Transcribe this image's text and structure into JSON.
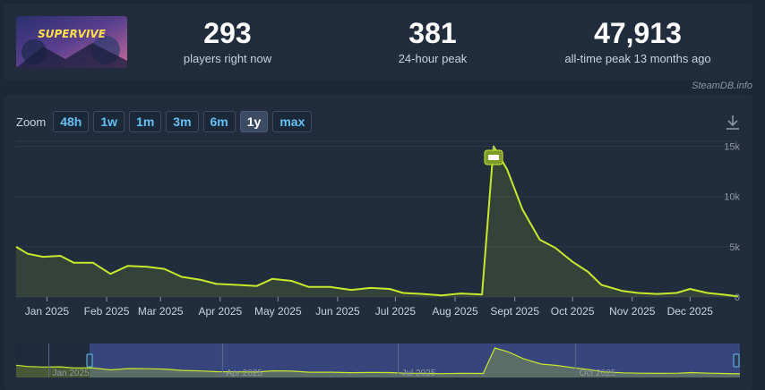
{
  "header": {
    "game_logo_text": "SUPERVIVE",
    "stats": [
      {
        "value": "293",
        "label": "players right now"
      },
      {
        "value": "381",
        "label": "24-hour peak"
      },
      {
        "value": "47,913",
        "label": "all-time peak 13 months ago"
      }
    ],
    "credit": "SteamDB.info"
  },
  "zoom": {
    "label": "Zoom",
    "buttons": [
      {
        "label": "48h",
        "active": false
      },
      {
        "label": "1w",
        "active": false
      },
      {
        "label": "1m",
        "active": false
      },
      {
        "label": "3m",
        "active": false
      },
      {
        "label": "6m",
        "active": false
      },
      {
        "label": "1y",
        "active": true
      },
      {
        "label": "max",
        "active": false
      }
    ]
  },
  "icons": {
    "download": "download-icon",
    "event_marker": "steam-event-icon"
  },
  "colors": {
    "line": "#c8e82c",
    "background": "#212c3d",
    "navigator": "#3b4a86",
    "link": "#66c0f4"
  },
  "chart_data": {
    "type": "area",
    "ylim": [
      0,
      15500
    ],
    "y_ticks": [
      0,
      5000,
      10000,
      15000
    ],
    "y_tick_labels": [
      "0",
      "5k",
      "10k",
      "15k"
    ],
    "x_ticks": [
      "2025-01-01",
      "2025-02-01",
      "2025-03-01",
      "2025-04-01",
      "2025-05-01",
      "2025-06-01",
      "2025-07-01",
      "2025-08-01",
      "2025-09-01",
      "2025-10-01",
      "2025-11-01",
      "2025-12-01"
    ],
    "x_tick_labels": [
      "Jan 2025",
      "Feb 2025",
      "Mar 2025",
      "Apr 2025",
      "May 2025",
      "Jun 2025",
      "Jul 2025",
      "Aug 2025",
      "Sept 2025",
      "Oct 2025",
      "Nov 2025",
      "Dec 2025"
    ],
    "xlim": [
      "2024-12-16",
      "2025-12-26"
    ],
    "points": [
      [
        "2024-12-16",
        5000
      ],
      [
        "2024-12-22",
        4300
      ],
      [
        "2024-12-30",
        4000
      ],
      [
        "2025-01-08",
        4100
      ],
      [
        "2025-01-15",
        3400
      ],
      [
        "2025-01-25",
        3400
      ],
      [
        "2025-02-03",
        2300
      ],
      [
        "2025-02-12",
        3100
      ],
      [
        "2025-02-22",
        3000
      ],
      [
        "2025-03-03",
        2800
      ],
      [
        "2025-03-12",
        2000
      ],
      [
        "2025-03-22",
        1700
      ],
      [
        "2025-03-30",
        1300
      ],
      [
        "2025-04-10",
        1200
      ],
      [
        "2025-04-20",
        1100
      ],
      [
        "2025-04-28",
        1800
      ],
      [
        "2025-05-08",
        1600
      ],
      [
        "2025-05-17",
        1000
      ],
      [
        "2025-05-28",
        1000
      ],
      [
        "2025-06-08",
        700
      ],
      [
        "2025-06-18",
        900
      ],
      [
        "2025-06-28",
        800
      ],
      [
        "2025-07-05",
        400
      ],
      [
        "2025-07-15",
        300
      ],
      [
        "2025-07-25",
        150
      ],
      [
        "2025-08-04",
        350
      ],
      [
        "2025-08-15",
        250
      ],
      [
        "2025-08-21",
        15000
      ],
      [
        "2025-08-28",
        12700
      ],
      [
        "2025-09-05",
        8700
      ],
      [
        "2025-09-14",
        5700
      ],
      [
        "2025-09-22",
        4900
      ],
      [
        "2025-10-01",
        3500
      ],
      [
        "2025-10-09",
        2500
      ],
      [
        "2025-10-16",
        1200
      ],
      [
        "2025-10-27",
        600
      ],
      [
        "2025-11-04",
        400
      ],
      [
        "2025-11-14",
        300
      ],
      [
        "2025-11-24",
        400
      ],
      [
        "2025-12-01",
        800
      ],
      [
        "2025-12-10",
        400
      ],
      [
        "2025-12-20",
        200
      ],
      [
        "2025-12-26",
        50
      ]
    ],
    "annotations": [
      {
        "date": "2025-08-21",
        "label": "steam event"
      }
    ],
    "navigator": {
      "tick_labels": [
        "Jan 2025",
        "Apr 2025",
        "Jul 2025",
        "Oct 2025"
      ],
      "tick_dates": [
        "2025-01-01",
        "2025-04-01",
        "2025-07-01",
        "2025-10-01"
      ]
    }
  }
}
